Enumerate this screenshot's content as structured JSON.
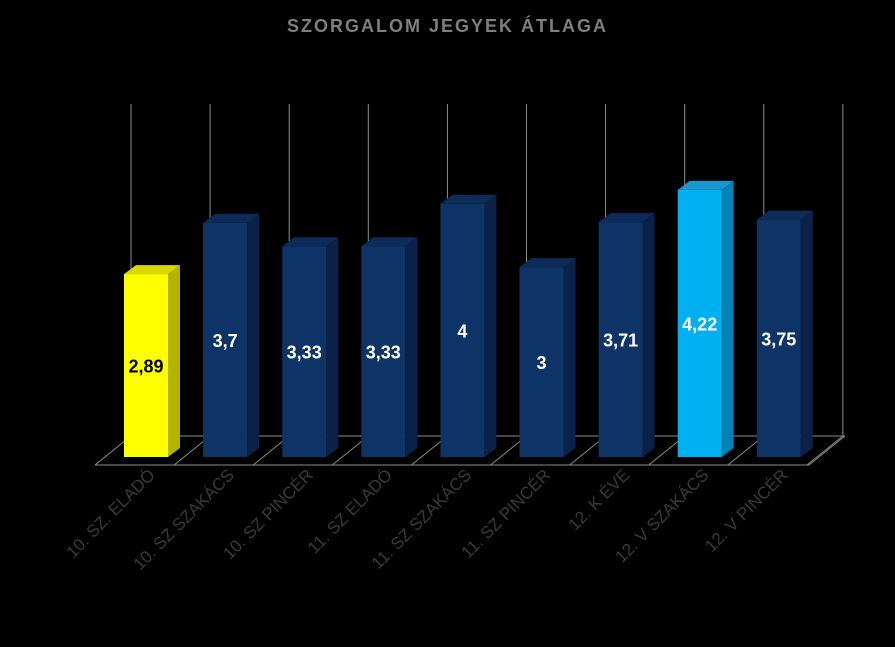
{
  "chart_data": {
    "type": "bar",
    "title": "SZORGALOM JEGYEK ÁTLAGA",
    "categories": [
      "10. SZ. ELADÓ",
      "10. SZ SZAKÁCS",
      "10. SZ PINCÉR",
      "11. SZ ELADÓ",
      "11. SZ SZAKÁCS",
      "11. SZ PINCÉR",
      "12. K ÉVE",
      "12. V SZAKÁCS",
      "12. V PINCÉR"
    ],
    "values": [
      2.89,
      3.7,
      3.33,
      3.33,
      4,
      3,
      3.71,
      4.22,
      3.75
    ],
    "value_labels": [
      "2,89",
      "3,7",
      "3,33",
      "3,33",
      "4",
      "3",
      "3,71",
      "4,22",
      "3,75"
    ],
    "ylim": [
      0,
      5
    ],
    "grid": true,
    "legend": "none",
    "style": "3d-column",
    "colors": {
      "default_front": "#0E3366",
      "default_side": "#0A2247",
      "default_top": "#0C2B58",
      "highlight_yellow_front": "#FFFF00",
      "highlight_yellow_side": "#B3B300",
      "highlight_yellow_top": "#D9D900",
      "highlight_blue_front": "#00B0F0",
      "highlight_blue_side": "#0082B4",
      "highlight_blue_top": "#1898D0",
      "label_dark": "#000000",
      "label_light": "#FFFFFF",
      "title": "#7F7F7F",
      "axis_labels": "#3A3A3A",
      "grid": "#8C8C8C"
    },
    "bar_styles": [
      "yellow",
      "default",
      "default",
      "default",
      "default",
      "default",
      "default",
      "blue",
      "default"
    ]
  }
}
